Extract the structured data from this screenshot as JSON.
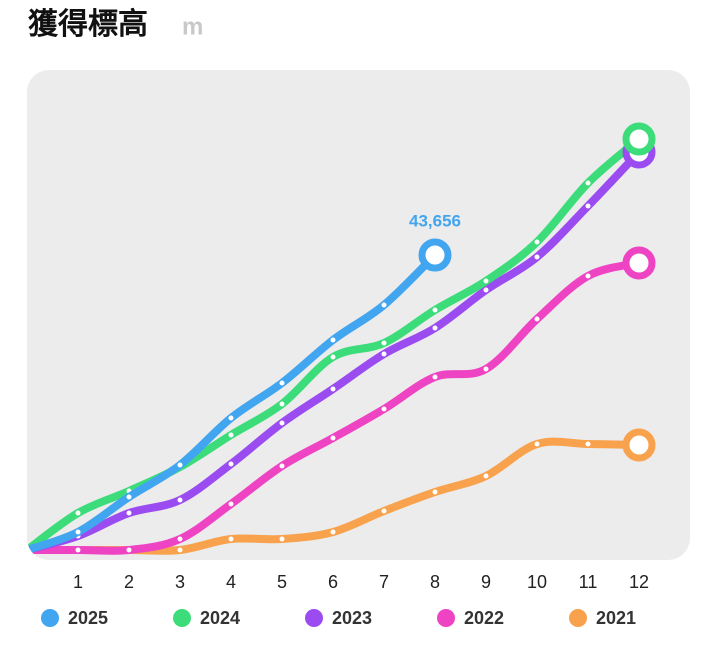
{
  "chart_data": {
    "type": "line",
    "title": "獲得標高",
    "unit": "m",
    "x": [
      0,
      1,
      2,
      3,
      4,
      5,
      6,
      7,
      8,
      9,
      10,
      11,
      12
    ],
    "xlim": [
      0,
      13
    ],
    "xticks": [
      1,
      2,
      3,
      4,
      5,
      6,
      7,
      8,
      9,
      10,
      11,
      12
    ],
    "ylim": [
      0,
      71040
    ],
    "series": [
      {
        "name": "2025",
        "color": "#42a5f0",
        "values": [
          0,
          2664,
          7844,
          12580,
          19536,
          24716,
          31080,
          36260,
          43656,
          null,
          null,
          null,
          null
        ],
        "value_labels": [
          null,
          null,
          null,
          null,
          null,
          null,
          null,
          null,
          "43,656",
          null,
          null,
          null,
          null
        ]
      },
      {
        "name": "2024",
        "color": "#3ddc7a",
        "values": [
          0,
          5476,
          8732,
          12284,
          17020,
          21608,
          28564,
          30636,
          35520,
          39812,
          45584,
          54316,
          60828
        ]
      },
      {
        "name": "2023",
        "color": "#9b4cf0",
        "values": [
          0,
          2072,
          5476,
          7400,
          12728,
          18796,
          23828,
          29008,
          32856,
          38480,
          43364,
          50912,
          58904
        ]
      },
      {
        "name": "2022",
        "color": "#ee44c4",
        "values": [
          0,
          0,
          0,
          1628,
          6808,
          12432,
          16576,
          20868,
          25604,
          26788,
          34188,
          40552,
          42476
        ]
      },
      {
        "name": "2021",
        "color": "#f8a24e",
        "values": [
          0,
          0,
          0,
          0,
          1628,
          1628,
          2664,
          5772,
          8584,
          10952,
          15688,
          15688,
          15540
        ]
      }
    ]
  }
}
